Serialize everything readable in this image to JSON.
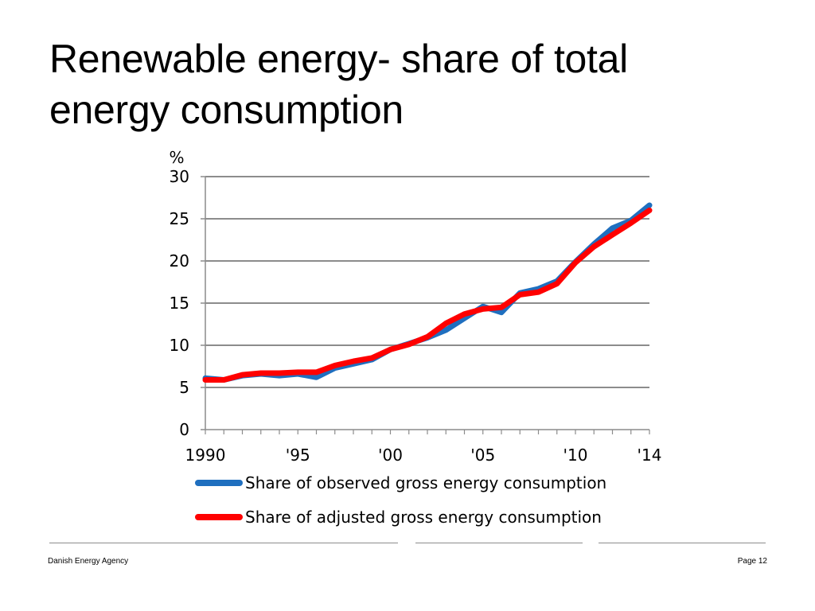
{
  "slide": {
    "title_line1": "Renewable energy- share of total",
    "title_line2": "energy consumption"
  },
  "footer": {
    "left": "Danish Energy Agency",
    "right": "Page 12"
  },
  "chart_data": {
    "type": "line",
    "title": "",
    "ylabel": "%",
    "xlabel": "",
    "ylim": [
      0,
      30
    ],
    "xlim": [
      1990,
      2014
    ],
    "yticks": [
      0,
      5,
      10,
      15,
      20,
      25,
      30
    ],
    "xtick_values": [
      1990,
      1995,
      2000,
      2005,
      2010,
      2014
    ],
    "xtick_labels": [
      "1990",
      "'95",
      "'00",
      "'05",
      "'10",
      "'14"
    ],
    "grid": true,
    "legend_position": "bottom",
    "x": [
      1990,
      1991,
      1992,
      1993,
      1994,
      1995,
      1996,
      1997,
      1998,
      1999,
      2000,
      2001,
      2002,
      2003,
      2004,
      2005,
      2006,
      2007,
      2008,
      2009,
      2010,
      2011,
      2012,
      2013,
      2014
    ],
    "series": [
      {
        "name": "Share of observed gross energy consumption",
        "color": "#1f6fbf",
        "values": [
          6.1,
          5.9,
          6.4,
          6.6,
          6.4,
          6.6,
          6.2,
          7.3,
          7.8,
          8.3,
          9.5,
          10.2,
          10.9,
          11.8,
          13.2,
          14.6,
          13.9,
          16.2,
          16.7,
          17.6,
          19.9,
          22.0,
          23.9,
          24.8,
          26.6
        ]
      },
      {
        "name": "Share of adjusted gross energy consumption",
        "color": "#ff0000",
        "values": [
          5.9,
          5.9,
          6.5,
          6.7,
          6.7,
          6.8,
          6.8,
          7.6,
          8.1,
          8.5,
          9.5,
          10.1,
          11.0,
          12.6,
          13.7,
          14.3,
          14.5,
          16.0,
          16.3,
          17.3,
          19.8,
          21.7,
          23.1,
          24.5,
          26.0
        ]
      }
    ]
  }
}
